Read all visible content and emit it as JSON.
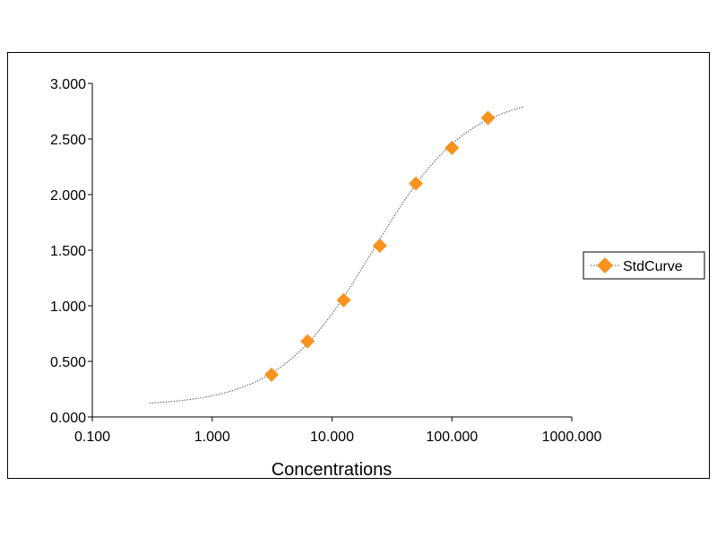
{
  "chart_data": {
    "type": "scatter",
    "title": "",
    "xlabel": "Concentrations",
    "ylabel": "",
    "x_scale": "log",
    "xlim": [
      0.1,
      1000
    ],
    "ylim": [
      0,
      3
    ],
    "x_ticks": [
      "0.100",
      "1.000",
      "10.000",
      "100.000",
      "1000.000"
    ],
    "y_ticks": [
      "0.000",
      "0.500",
      "1.000",
      "1.500",
      "2.000",
      "2.500",
      "3.000"
    ],
    "grid": false,
    "legend_position": "right",
    "marker": "diamond",
    "marker_color": "#F7931E",
    "curve_color": "#555555",
    "series": [
      {
        "name": "StdCurve",
        "x": [
          3.125,
          6.25,
          12.5,
          25,
          50,
          100,
          200
        ],
        "y": [
          0.38,
          0.68,
          1.05,
          1.54,
          2.1,
          2.42,
          2.69
        ]
      }
    ],
    "fit_curve": {
      "type": "4PL",
      "x_range": [
        0.3,
        400
      ]
    }
  }
}
